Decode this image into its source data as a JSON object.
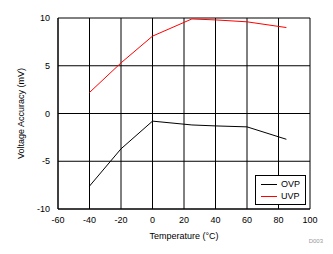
{
  "chart_data": {
    "type": "line",
    "x_label": "Temperature (°C)",
    "y_label": "Voltage Accuracy (mV)",
    "x": [
      -40,
      -20,
      0,
      25,
      40,
      60,
      85
    ],
    "series": [
      {
        "name": "OVP",
        "color": "#000000",
        "values": [
          -7.6,
          -3.7,
          -0.8,
          -1.2,
          -1.3,
          -1.4,
          -2.7
        ]
      },
      {
        "name": "UVP",
        "color": "#ff0000",
        "values": [
          2.2,
          5.3,
          8.1,
          9.9,
          9.8,
          9.6,
          9.0
        ]
      }
    ],
    "xlim": [
      -60,
      100
    ],
    "xticks": [
      -60,
      -40,
      -20,
      0,
      20,
      40,
      60,
      80,
      100
    ],
    "ylim": [
      -10,
      10
    ],
    "yticks": [
      -10,
      -5,
      0,
      5,
      10
    ],
    "grid": true,
    "legend": "lower right",
    "annotations": [
      "D003"
    ]
  }
}
